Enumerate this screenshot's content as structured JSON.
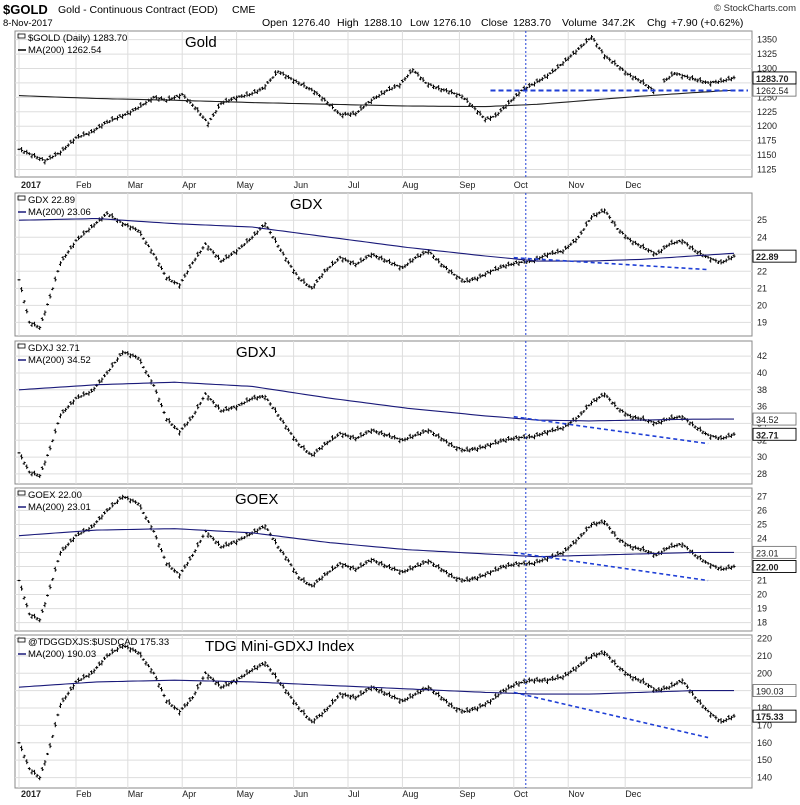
{
  "header": {
    "symbol": "$GOLD",
    "description": "Gold - Continuous Contract (EOD)",
    "exchange": "CME",
    "date": "8-Nov-2017",
    "open_label": "Open",
    "open": "1276.40",
    "high_label": "High",
    "high": "1288.10",
    "low_label": "Low",
    "low": "1276.10",
    "close_label": "Close",
    "close": "1283.70",
    "volume_label": "Volume",
    "volume": "347.2K",
    "chg_label": "Chg",
    "chg": "+7.90 (+0.62%)",
    "watermark": "© StockCharts.com"
  },
  "x_axis": {
    "labels": [
      "2017",
      "Feb",
      "Mar",
      "Apr",
      "May",
      "Jun",
      "Jul",
      "Aug",
      "Sep",
      "Oct",
      "Nov",
      "Dec"
    ]
  },
  "colors": {
    "price": "#000000",
    "ma": "#1a1a7a",
    "dashed": "#1f3fd6",
    "grid": "#dddddd"
  },
  "chart_data": [
    {
      "type": "line",
      "name_label": "Gold",
      "legend_symbol": "$GOLD (Daily) 1283.70",
      "legend_ma": "MA(200) 1262.54",
      "ylim": [
        1112,
        1365
      ],
      "y_ticks": [
        1125,
        1150,
        1175,
        1200,
        1225,
        1250,
        1275,
        1300,
        1325,
        1350
      ],
      "last_price_label": "1283.70",
      "ma_label": "1262.54",
      "last_price": 1283.7,
      "ma_last": 1262.54,
      "series": [
        {
          "name": "$GOLD",
          "x": [
            0,
            5,
            10,
            16,
            22,
            28,
            33,
            38,
            42,
            47,
            52,
            57,
            63,
            68,
            73,
            78,
            84,
            89,
            94,
            100,
            105,
            110,
            114,
            118,
            124,
            130,
            136,
            142,
            147,
            152,
            157,
            162,
            166,
            171,
            176,
            180,
            184,
            189,
            194,
            198,
            203,
            207,
            212,
            217,
            221,
            226,
            231,
            235,
            240,
            245
          ],
          "y": [
            1160,
            1150,
            1140,
            1155,
            1180,
            1190,
            1205,
            1215,
            1222,
            1235,
            1250,
            1245,
            1255,
            1232,
            1205,
            1240,
            1250,
            1255,
            1265,
            1295,
            1282,
            1270,
            1260,
            1245,
            1220,
            1222,
            1245,
            1262,
            1272,
            1298,
            1275,
            1265,
            1260,
            1252,
            1230,
            1212,
            1218,
            1240,
            1262,
            1272,
            1285,
            1298,
            1318,
            1338,
            1355,
            1322,
            1305,
            1290,
            1278,
            1262
          ]
        },
        {
          "name": "$GOLD (cont)",
          "x": [
            249,
            253,
            258,
            262,
            266,
            271,
            276
          ],
          "y": [
            1278,
            1292,
            1285,
            1280,
            1275,
            1278,
            1284
          ]
        },
        {
          "name": "MA(200)",
          "x": [
            0,
            30,
            60,
            90,
            120,
            150,
            180,
            200,
            220,
            240,
            260,
            276
          ],
          "y": [
            1253,
            1248,
            1245,
            1241,
            1238,
            1235,
            1234,
            1238,
            1245,
            1252,
            1258,
            1262.5
          ]
        }
      ],
      "dashed_level": 1262
    },
    {
      "type": "line",
      "name_label": "GDX",
      "legend_symbol": "GDX 22.89",
      "legend_ma": "MA(200) 23.06",
      "ylim": [
        18.2,
        26.6
      ],
      "y_ticks": [
        19,
        20,
        21,
        22,
        23,
        24,
        25
      ],
      "last_price_label": "22.89",
      "ma_label": "",
      "last_price": 22.89,
      "ma_last": 23.06,
      "series": [
        {
          "name": "GDX",
          "x": [
            0,
            4,
            8,
            12,
            16,
            22,
            28,
            34,
            40,
            46,
            52,
            57,
            62,
            67,
            72,
            78,
            84,
            90,
            95,
            100,
            104,
            108,
            113,
            118,
            124,
            130,
            136,
            142,
            148,
            153,
            158,
            163,
            168,
            172,
            177,
            182,
            187,
            192,
            198,
            204,
            210,
            216,
            221,
            226,
            231,
            236,
            241,
            246,
            251,
            256,
            261,
            266,
            271,
            276
          ],
          "y": [
            21.5,
            19.0,
            18.7,
            20.5,
            22.5,
            23.8,
            24.6,
            25.4,
            24.8,
            24.4,
            23.0,
            21.6,
            21.2,
            22.5,
            23.6,
            22.6,
            23.2,
            24.0,
            24.8,
            23.5,
            22.5,
            21.6,
            21.0,
            22.0,
            22.8,
            22.4,
            23.0,
            22.6,
            22.2,
            22.8,
            23.2,
            22.4,
            21.8,
            21.4,
            21.6,
            22.0,
            22.3,
            22.5,
            22.6,
            23.0,
            23.2,
            24.0,
            25.2,
            25.6,
            24.5,
            23.8,
            23.4,
            23.0,
            23.6,
            23.8,
            23.2,
            22.8,
            22.5,
            22.89
          ]
        },
        {
          "name": "MA(200)",
          "x": [
            0,
            30,
            60,
            90,
            120,
            150,
            180,
            200,
            220,
            240,
            260,
            276
          ],
          "y": [
            25.0,
            25.1,
            24.8,
            24.6,
            24.0,
            23.4,
            22.9,
            22.6,
            22.6,
            22.7,
            22.9,
            23.06
          ]
        }
      ]
    },
    {
      "type": "line",
      "name_label": "GDXJ",
      "legend_symbol": "GDXJ 32.71",
      "legend_ma": "MA(200) 34.52",
      "ylim": [
        26.8,
        43.8
      ],
      "y_ticks": [
        28,
        30,
        32,
        34,
        36,
        38,
        40,
        42
      ],
      "last_price_label": "32.71",
      "ma_label": "34.52",
      "last_price": 32.71,
      "ma_last": 34.52,
      "series": [
        {
          "name": "GDXJ",
          "x": [
            0,
            4,
            8,
            12,
            16,
            22,
            28,
            34,
            40,
            46,
            52,
            57,
            62,
            67,
            72,
            78,
            84,
            90,
            95,
            100,
            104,
            108,
            113,
            118,
            124,
            130,
            136,
            142,
            148,
            153,
            158,
            163,
            168,
            172,
            177,
            182,
            187,
            192,
            198,
            204,
            210,
            216,
            221,
            226,
            231,
            236,
            241,
            246,
            251,
            256,
            261,
            266,
            271,
            276
          ],
          "y": [
            30.5,
            28.2,
            27.8,
            31.0,
            35.0,
            37.0,
            37.8,
            40.0,
            42.5,
            41.8,
            38.5,
            34.5,
            33.0,
            34.8,
            37.5,
            35.5,
            36.0,
            37.0,
            37.2,
            35.0,
            33.2,
            31.5,
            30.2,
            31.5,
            32.8,
            32.2,
            33.2,
            32.6,
            32.0,
            32.6,
            33.2,
            32.2,
            31.2,
            30.8,
            31.0,
            31.5,
            32.0,
            32.3,
            32.4,
            33.0,
            33.5,
            34.8,
            36.5,
            37.5,
            35.8,
            34.8,
            34.5,
            34.0,
            34.6,
            34.8,
            33.6,
            32.6,
            32.2,
            32.71
          ]
        },
        {
          "name": "MA(200)",
          "x": [
            0,
            30,
            60,
            90,
            120,
            150,
            180,
            200,
            220,
            240,
            260,
            276
          ],
          "y": [
            38.0,
            38.6,
            38.9,
            38.4,
            37.0,
            35.8,
            34.9,
            34.4,
            34.3,
            34.4,
            34.5,
            34.52
          ]
        }
      ]
    },
    {
      "type": "line",
      "name_label": "GOEX",
      "legend_symbol": "GOEX 22.00",
      "legend_ma": "MA(200) 23.01",
      "ylim": [
        17.4,
        27.6
      ],
      "y_ticks": [
        18,
        19,
        20,
        21,
        22,
        23,
        24,
        25,
        26,
        27
      ],
      "last_price_label": "22.00",
      "ma_label": "23.01",
      "last_price": 22.0,
      "ma_last": 23.01,
      "series": [
        {
          "name": "GOEX",
          "x": [
            0,
            4,
            8,
            12,
            16,
            22,
            28,
            34,
            40,
            46,
            52,
            57,
            62,
            67,
            72,
            78,
            84,
            90,
            95,
            100,
            104,
            108,
            113,
            118,
            124,
            130,
            136,
            142,
            148,
            153,
            158,
            163,
            168,
            172,
            177,
            182,
            187,
            192,
            198,
            204,
            210,
            216,
            221,
            226,
            231,
            236,
            241,
            246,
            251,
            256,
            261,
            266,
            271,
            276
          ],
          "y": [
            21.0,
            18.6,
            18.2,
            20.5,
            23.0,
            24.2,
            24.8,
            26.0,
            27.0,
            26.5,
            24.5,
            22.2,
            21.4,
            22.8,
            24.5,
            23.4,
            23.8,
            24.4,
            24.9,
            23.4,
            22.4,
            21.2,
            20.6,
            21.4,
            22.2,
            21.8,
            22.5,
            22.0,
            21.6,
            22.0,
            22.4,
            21.8,
            21.2,
            21.0,
            21.2,
            21.6,
            22.0,
            22.2,
            22.2,
            22.6,
            23.0,
            24.0,
            25.0,
            25.2,
            24.0,
            23.4,
            23.2,
            22.8,
            23.4,
            23.6,
            22.8,
            22.2,
            21.8,
            22.0
          ]
        },
        {
          "name": "MA(200)",
          "x": [
            0,
            30,
            60,
            90,
            120,
            150,
            180,
            200,
            220,
            240,
            260,
            276
          ],
          "y": [
            24.2,
            24.6,
            24.7,
            24.4,
            23.7,
            23.2,
            22.9,
            22.7,
            22.8,
            22.9,
            23.0,
            23.01
          ]
        }
      ]
    },
    {
      "type": "line",
      "name_label": "TDG Mini-GDXJ Index",
      "legend_symbol": "@TDGGDXJS:$USDCAD 175.33",
      "legend_ma": "MA(200) 190.03",
      "ylim": [
        134,
        222
      ],
      "y_ticks": [
        140,
        150,
        160,
        170,
        180,
        190,
        200,
        210,
        220
      ],
      "last_price_label": "175.33",
      "ma_label": "190.03",
      "last_price": 175.33,
      "ma_last": 190.03,
      "series": [
        {
          "name": "TDG Mini-GDXJ",
          "x": [
            0,
            4,
            8,
            12,
            16,
            22,
            28,
            34,
            40,
            46,
            52,
            57,
            62,
            67,
            72,
            78,
            84,
            90,
            95,
            100,
            104,
            108,
            113,
            118,
            124,
            130,
            136,
            142,
            148,
            153,
            158,
            163,
            168,
            172,
            177,
            182,
            187,
            192,
            198,
            204,
            210,
            216,
            221,
            226,
            231,
            236,
            241,
            246,
            251,
            256,
            261,
            266,
            271,
            276
          ],
          "y": [
            160,
            145,
            140,
            158,
            182,
            195,
            200,
            210,
            216,
            212,
            200,
            184,
            178,
            186,
            200,
            192,
            196,
            202,
            206,
            196,
            188,
            180,
            172,
            178,
            188,
            186,
            192,
            188,
            184,
            188,
            192,
            186,
            180,
            178,
            180,
            184,
            190,
            194,
            196,
            196,
            198,
            204,
            210,
            212,
            204,
            198,
            195,
            190,
            192,
            196,
            186,
            178,
            172,
            175.33
          ]
        },
        {
          "name": "MA(200)",
          "x": [
            0,
            30,
            60,
            90,
            120,
            150,
            180,
            200,
            220,
            240,
            260,
            276
          ],
          "y": [
            192,
            195,
            196,
            195,
            193,
            191,
            189,
            188,
            188,
            189,
            190,
            190.03
          ]
        }
      ]
    }
  ]
}
